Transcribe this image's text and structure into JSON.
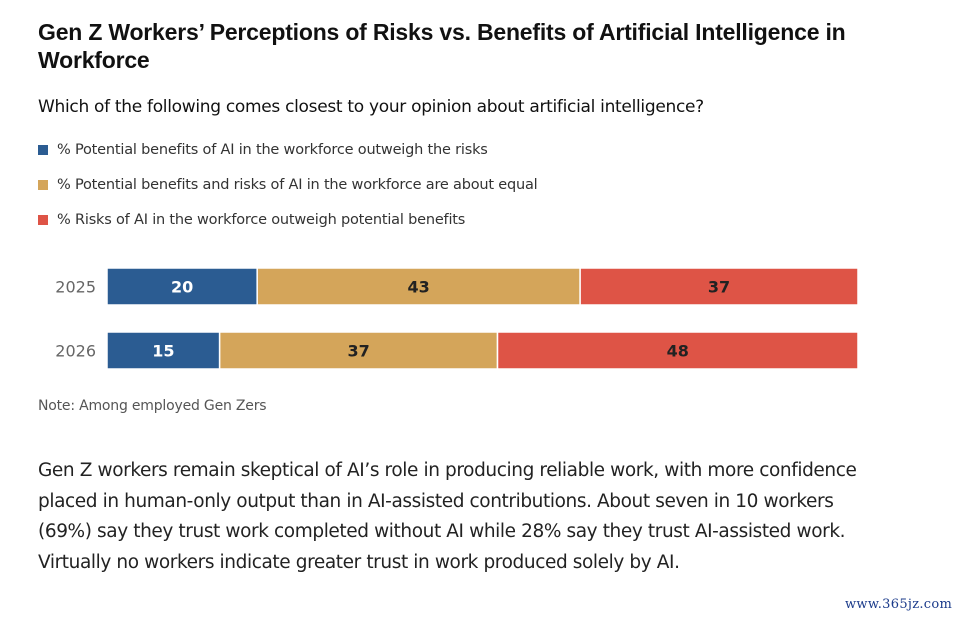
{
  "title": "Gen Z Workers’ Perceptions of Risks vs. Benefits of Artificial Intelligence in Workforce",
  "question": "Which of the following comes closest to your opinion about artificial intelligence?",
  "note": "Note: Among employed Gen Zers",
  "paragraph": "Gen Z workers remain skeptical of AI’s role in producing reliable work, with more confidence placed in human-only output than in AI-assisted contributions. About seven in 10 workers (69%) say they trust work completed without AI while 28% say they trust AI-assisted work. Virtually no workers indicate greater trust in work produced solely by AI.",
  "watermark": "www.365jz.com",
  "chart_data": {
    "type": "bar",
    "orientation": "horizontal",
    "stacked": true,
    "percent_stacked": true,
    "title": "Gen Z Workers’ Perceptions of Risks vs. Benefits of Artificial Intelligence in Workforce",
    "subtitle": "Which of the following comes closest to your opinion about artificial intelligence?",
    "categories": [
      "2025",
      "2026"
    ],
    "series": [
      {
        "name": "% Potential benefits of AI in the workforce outweigh the risks",
        "color": "#2b5c92",
        "label_color": "#ffffff",
        "values": [
          20,
          15
        ]
      },
      {
        "name": "% Potential benefits and risks of AI in the workforce are about equal",
        "color": "#d4a55a",
        "label_color": "#222222",
        "values": [
          43,
          37
        ]
      },
      {
        "name": "% Risks of AI in the workforce outweigh potential benefits",
        "color": "#de5446",
        "label_color": "#222222",
        "values": [
          37,
          48
        ]
      }
    ],
    "xlim": [
      0,
      100
    ],
    "xlabel": "",
    "ylabel": "",
    "grid": false,
    "legend_position": "top-left",
    "annotations": [
      "Note: Among employed Gen Zers"
    ]
  }
}
